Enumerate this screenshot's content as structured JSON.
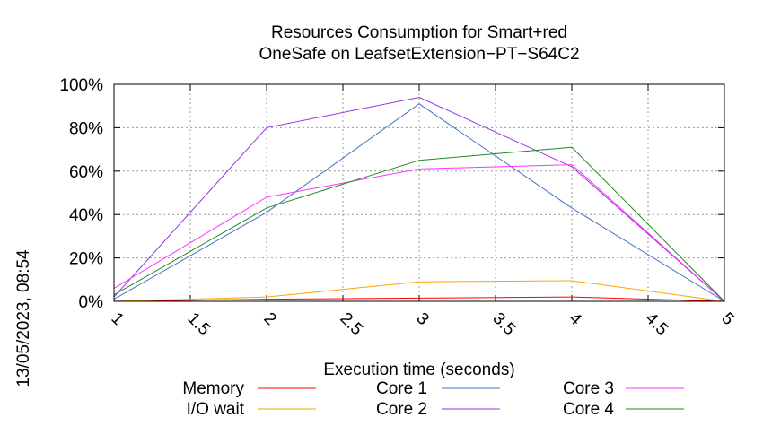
{
  "chart_data": {
    "type": "line",
    "title_line1": "Resources Consumption for Smart+red",
    "title_line2": "OneSafe on LeafsetExtension−PT−S64C2",
    "xlabel": "Execution time (seconds)",
    "ylabel": "",
    "timestamp": "13/05/2023, 08:54",
    "xlim": [
      1,
      5
    ],
    "ylim": [
      0,
      100
    ],
    "x_ticks": [
      "1",
      "1.5",
      "2",
      "2.5",
      "3",
      "3.5",
      "4",
      "4.5",
      "5"
    ],
    "y_ticks": [
      "0%",
      "20%",
      "40%",
      "60%",
      "80%",
      "100%"
    ],
    "grid": true,
    "legend_position": "bottom",
    "x": [
      1,
      2,
      3,
      4,
      5
    ],
    "series": [
      {
        "name": "Memory",
        "color": "#ff0000",
        "values": [
          0,
          1,
          1.5,
          2,
          0
        ]
      },
      {
        "name": "I/O wait",
        "color": "#ffa500",
        "values": [
          0,
          2,
          9,
          9.5,
          0
        ]
      },
      {
        "name": "Core 1",
        "color": "#4472c4",
        "values": [
          1,
          41,
          91,
          43,
          0
        ]
      },
      {
        "name": "Core 2",
        "color": "#9933dd",
        "values": [
          2,
          80,
          94,
          62,
          0
        ]
      },
      {
        "name": "Core 3",
        "color": "#ff33ff",
        "values": [
          6,
          48,
          61,
          63,
          0
        ]
      },
      {
        "name": "Core 4",
        "color": "#228b22",
        "values": [
          3,
          43,
          65,
          71,
          0
        ]
      }
    ]
  }
}
